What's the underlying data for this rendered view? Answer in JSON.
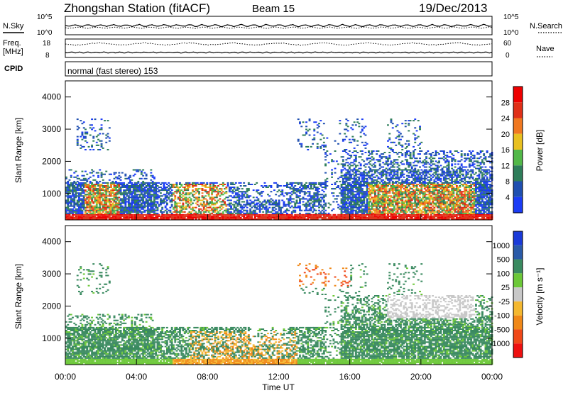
{
  "header": {
    "title": "Zhongshan Station (fitACF)",
    "beam": "Beam 15",
    "date": "19/Dec/2013"
  },
  "noise_panel": {
    "left_label": "N.Sky",
    "right_label": "N.Search",
    "ticks_left": [
      "10^5",
      "10^0"
    ],
    "ticks_right": [
      "10^5",
      "10^0"
    ]
  },
  "freq_panel": {
    "left_label_1": "Freq.",
    "left_label_2": "[MHz]",
    "right_label": "Nave",
    "ticks_left": [
      "18",
      "8"
    ],
    "ticks_right": [
      "60",
      "0"
    ]
  },
  "cpid_panel": {
    "label": "CPID",
    "value": "normal (fast stereo) 153"
  },
  "chart_data": [
    {
      "type": "heatmap",
      "parameter": "Power",
      "colorbar_label": "Power [dB]",
      "ylabel": "Slant Range [km]",
      "ylim": [
        180,
        4500
      ],
      "yticks": [
        1000,
        2000,
        3000,
        4000
      ],
      "xlim": [
        "00:00",
        "24:00"
      ],
      "color_levels": [
        {
          "label": "4",
          "color": "#1b3cf5"
        },
        {
          "label": "8",
          "color": "#1f4fb0"
        },
        {
          "label": "12",
          "color": "#2e7d5a"
        },
        {
          "label": "16",
          "color": "#52b848"
        },
        {
          "label": "20",
          "color": "#e8c020"
        },
        {
          "label": "24",
          "color": "#f07820"
        },
        {
          "label": "28",
          "color": "#e03018"
        },
        {
          "label": "",
          "color": "#ee0000"
        }
      ]
    },
    {
      "type": "heatmap",
      "parameter": "Velocity",
      "colorbar_label": "Velocity [m s⁻¹]",
      "ylabel": "Slant Range [km]",
      "ylim": [
        180,
        4500
      ],
      "yticks": [
        1000,
        2000,
        3000,
        4000
      ],
      "xlim": [
        "00:00",
        "24:00"
      ],
      "color_levels": [
        {
          "label": "-1000",
          "color": "#ee1010"
        },
        {
          "label": "-500",
          "color": "#f04818"
        },
        {
          "label": "-100",
          "color": "#f08818"
        },
        {
          "label": "-25",
          "color": "#f4b830"
        },
        {
          "label": "25",
          "color": "#c8c8c8"
        },
        {
          "label": "100",
          "color": "#6cc838"
        },
        {
          "label": "500",
          "color": "#3a8a60"
        },
        {
          "label": "1000",
          "color": "#2a5aa8"
        },
        {
          "label": "",
          "color": "#1a3ad8"
        }
      ]
    }
  ],
  "time_axis": {
    "ticks": [
      "00:00",
      "04:00",
      "08:00",
      "12:00",
      "16:00",
      "20:00",
      "00:00"
    ],
    "label": "Time UT"
  }
}
